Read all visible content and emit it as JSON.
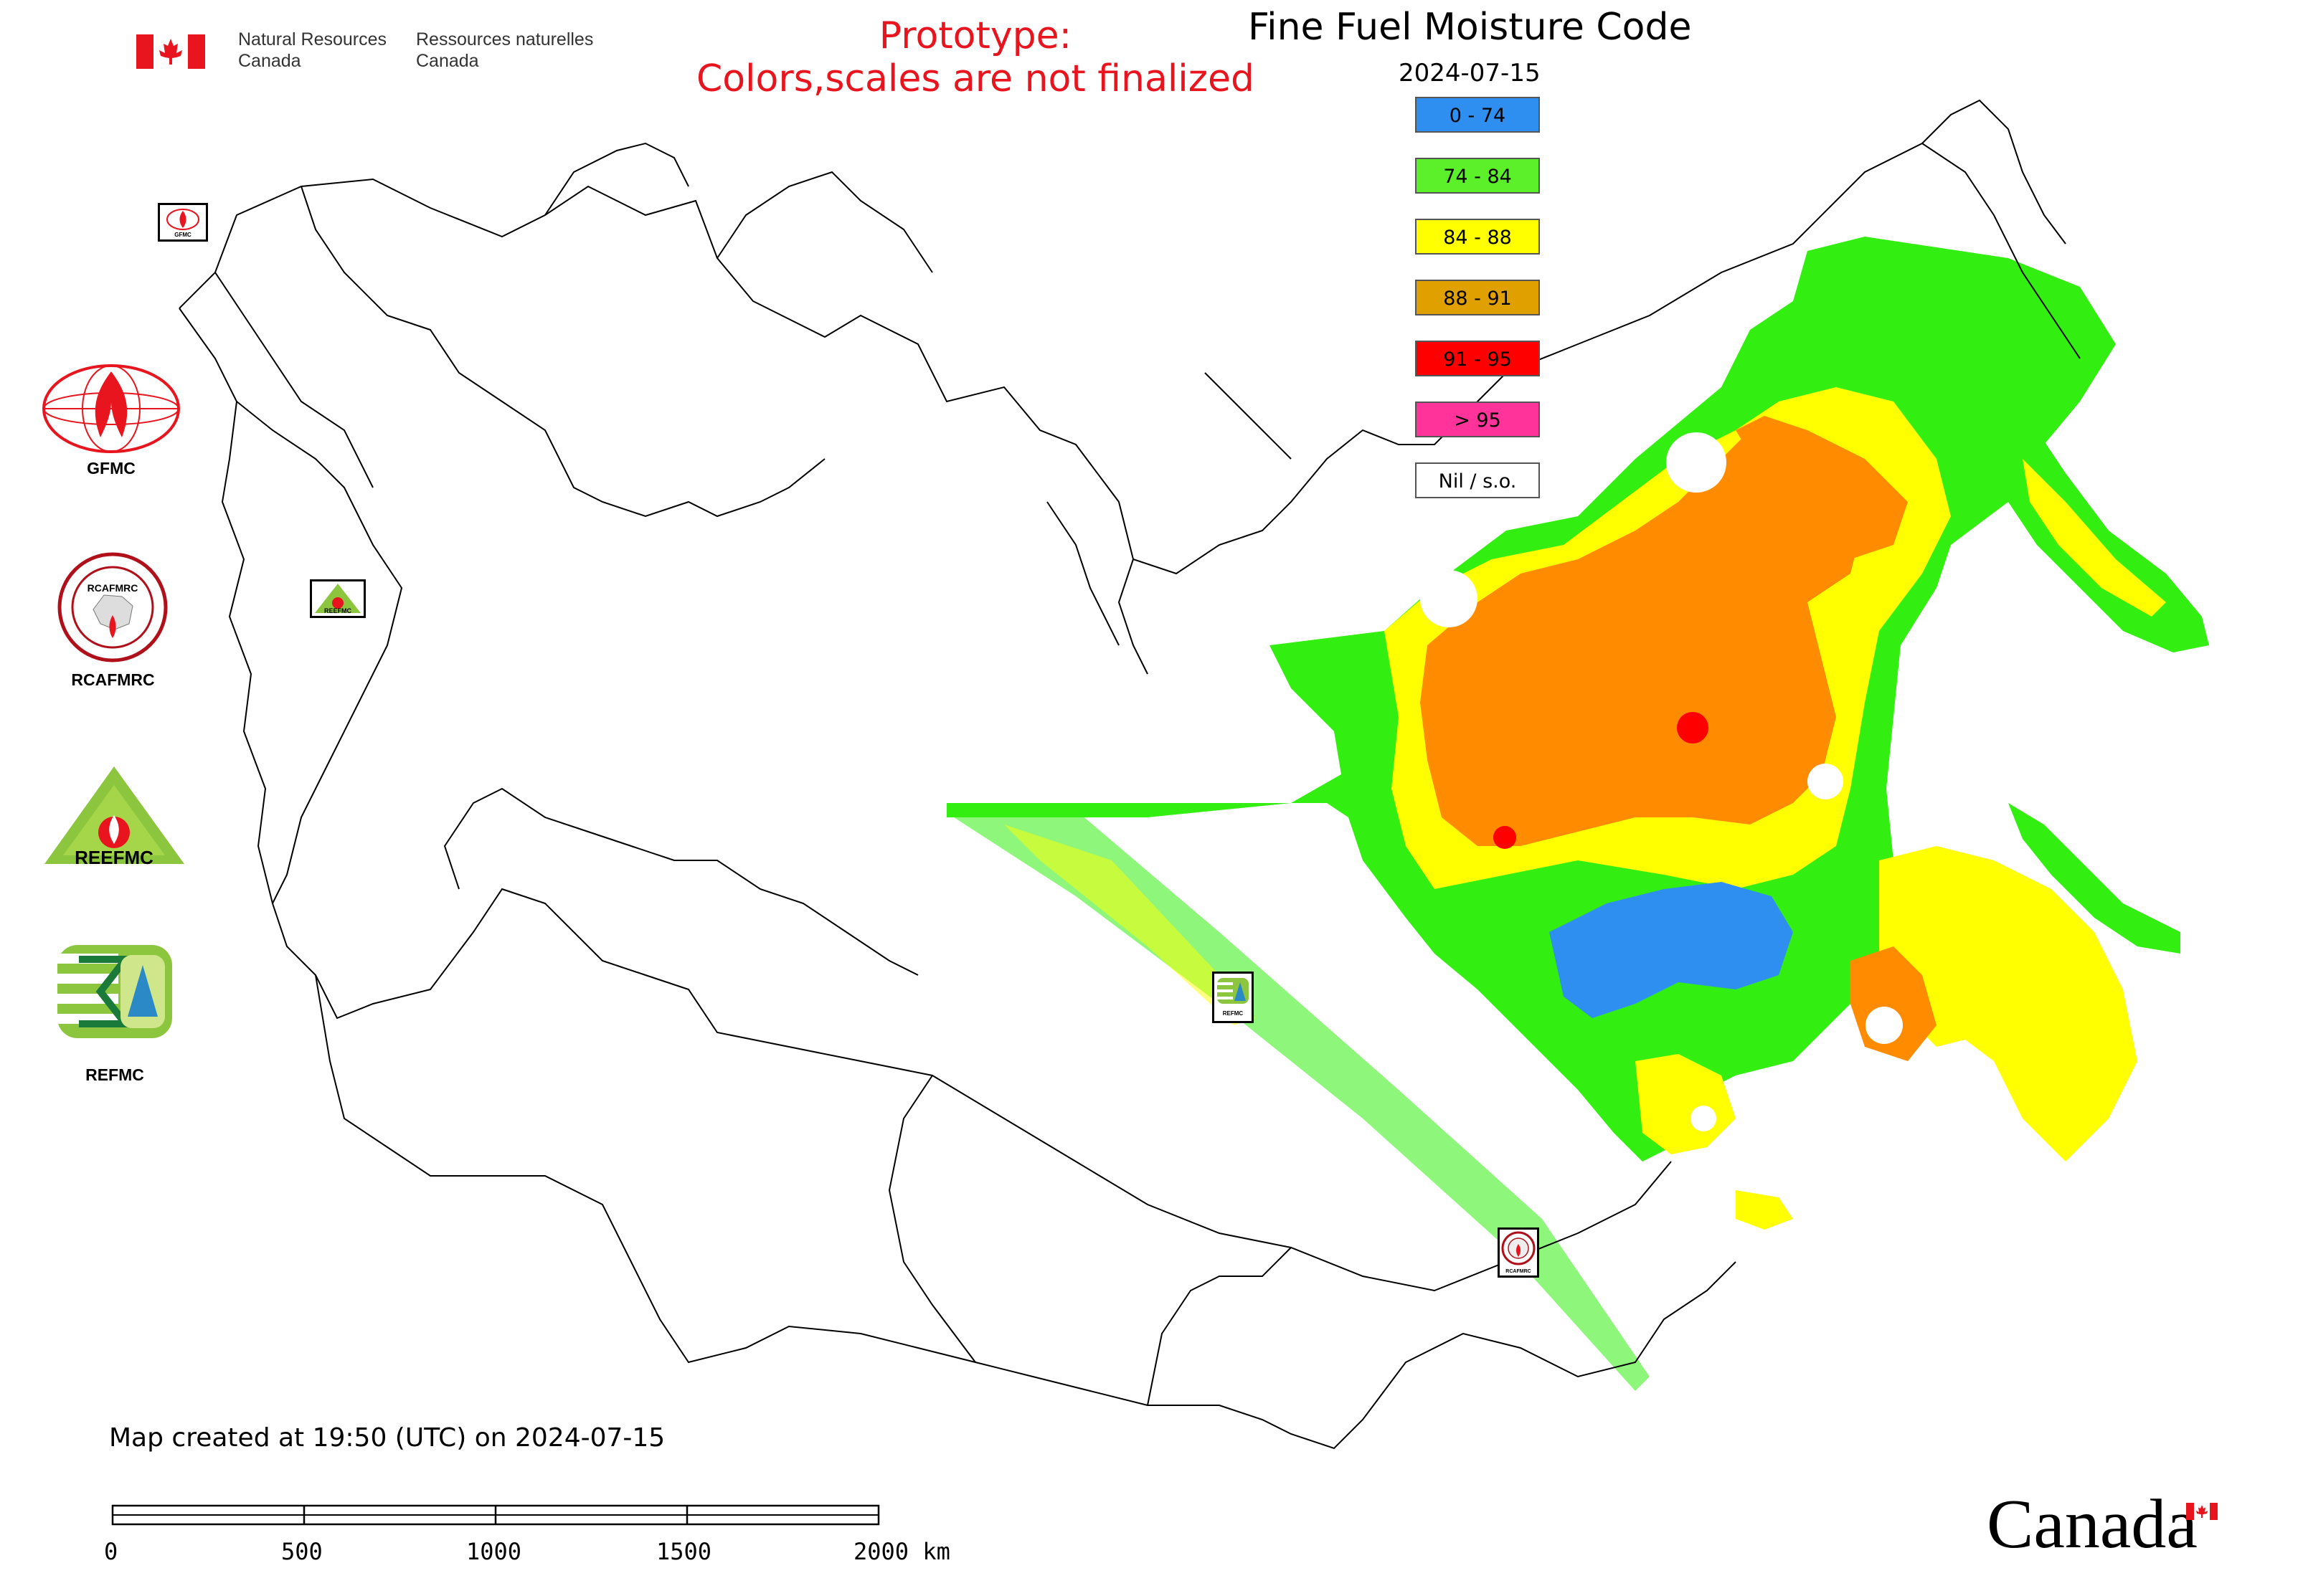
{
  "header": {
    "dept_en_1": "Natural Resources",
    "dept_en_2": "Canada",
    "dept_fr_1": "Ressources naturelles",
    "dept_fr_2": "Canada"
  },
  "prototype_notice": {
    "line1": "Prototype:",
    "line2": "Colors,scales are not finalized"
  },
  "title": "Fine Fuel Moisture Code",
  "date": "2024-07-15",
  "legend": [
    {
      "label": "0 - 74",
      "color": "#2f8ff0"
    },
    {
      "label": "74 - 84",
      "color": "#5cf02b"
    },
    {
      "label": "84 - 88",
      "color": "#ffff00"
    },
    {
      "label": "88 - 91",
      "color": "#e0a000"
    },
    {
      "label": "91 - 95",
      "color": "#ff0000"
    },
    {
      "label": "> 95",
      "color": "#ff3399"
    },
    {
      "label": "Nil / s.o.",
      "color": "#ffffff"
    }
  ],
  "map_colors": {
    "blue": "#2f8ff0",
    "green": "#33ee11",
    "yellow": "#ffff00",
    "orange": "#ff8c00",
    "red": "#ff0000",
    "border": "#000000"
  },
  "orgs": [
    {
      "label": "GFMC",
      "icon": "gfmc-logo"
    },
    {
      "label": "RCAFMRC",
      "icon": "rcafmrc-logo",
      "logo_text": "RCAFMRC"
    },
    {
      "label": "REFMC",
      "icon": "reefmc-logo",
      "logo_text": "REEFMC"
    },
    {
      "label": "REFMC",
      "icon": "refmc-logo"
    }
  ],
  "map_markers": [
    {
      "name": "gfmc-marker",
      "label": "GFMC"
    },
    {
      "name": "reefmc-marker",
      "label": "REEFMC"
    },
    {
      "name": "refmc-marker",
      "label": "REFMC"
    },
    {
      "name": "rcafmrc-marker",
      "label": "RCAFMRC"
    }
  ],
  "footer": {
    "created": "Map created at 19:50 (UTC) on 2024-07-15",
    "scale_labels": [
      "0",
      "500",
      "1000",
      "1500",
      "2000 km"
    ],
    "wordmark": "Canada"
  }
}
